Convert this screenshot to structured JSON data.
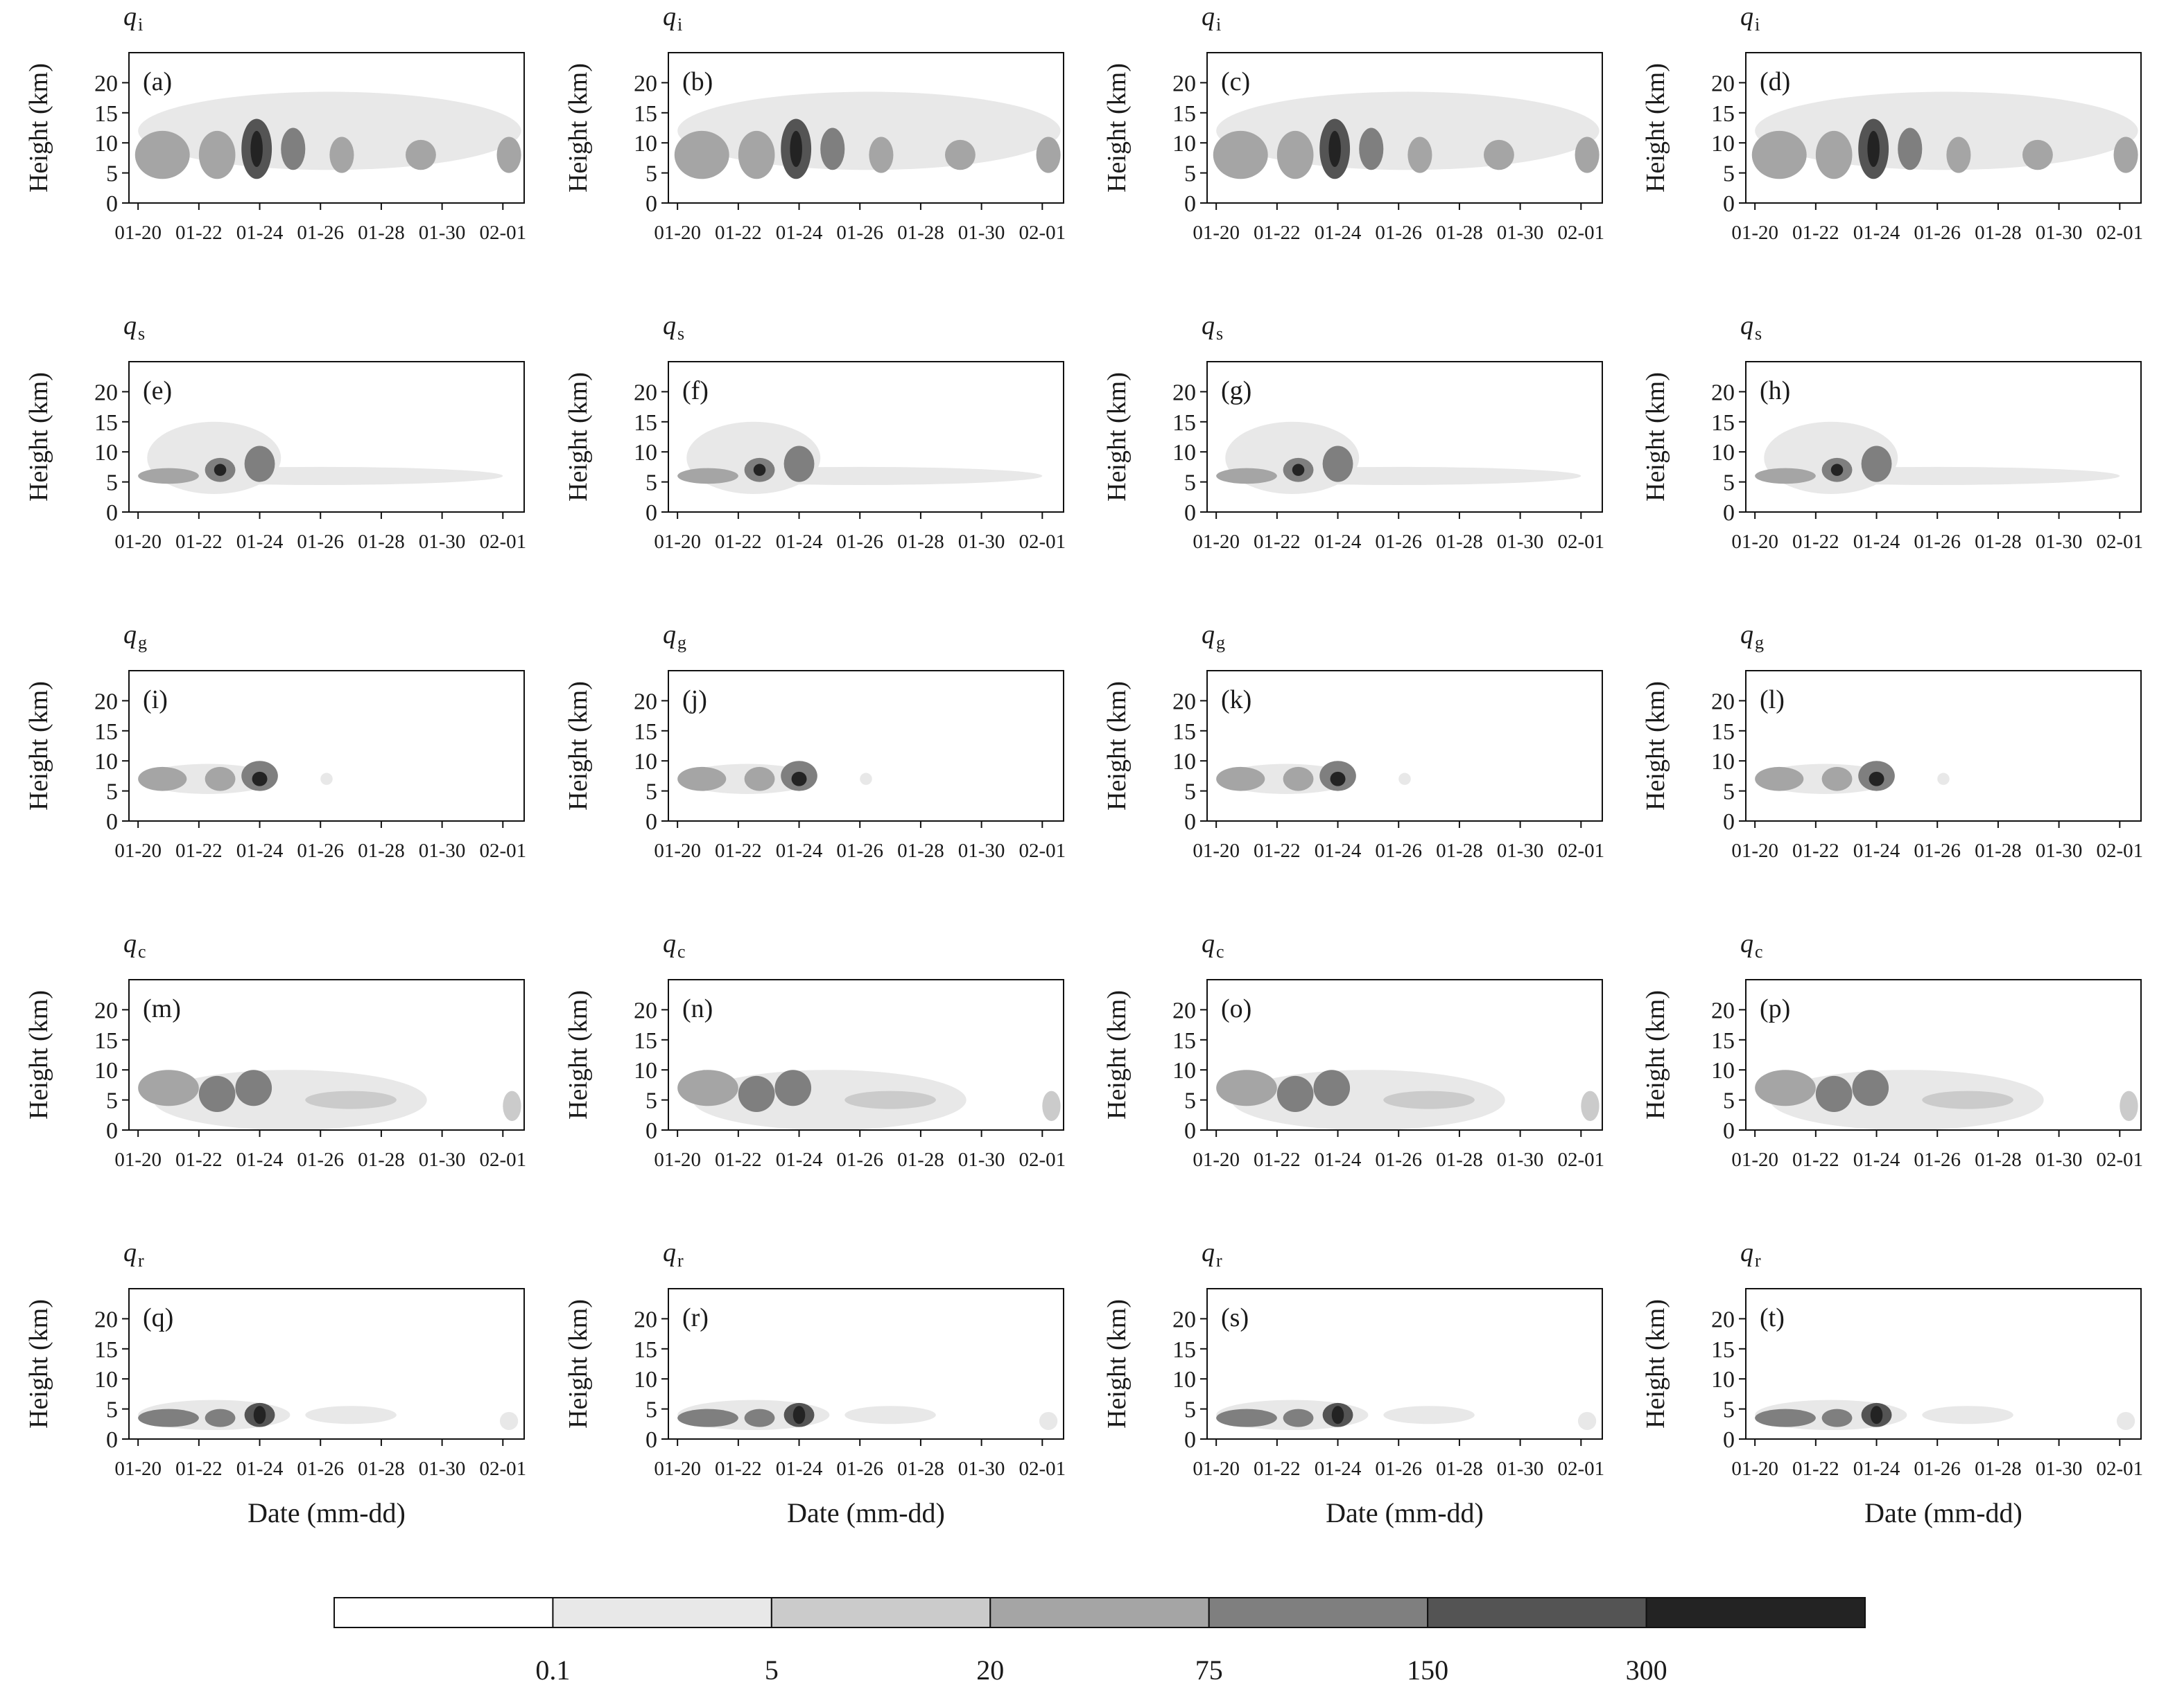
{
  "figure": {
    "xlabel": "Date (mm-dd)",
    "ylabel": "Height (km)",
    "x_tick_labels": [
      "01-20",
      "01-22",
      "01-24",
      "01-26",
      "01-28",
      "01-30",
      "02-01"
    ],
    "y_tick_labels": [
      "0",
      "5",
      "10",
      "15",
      "20"
    ]
  },
  "rows": [
    {
      "var": "q",
      "sub": "i",
      "panels": [
        "(a)",
        "(b)",
        "(c)",
        "(d)"
      ]
    },
    {
      "var": "q",
      "sub": "s",
      "panels": [
        "(e)",
        "(f)",
        "(g)",
        "(h)"
      ]
    },
    {
      "var": "q",
      "sub": "g",
      "panels": [
        "(i)",
        "(j)",
        "(k)",
        "(l)"
      ]
    },
    {
      "var": "q",
      "sub": "c",
      "panels": [
        "(m)",
        "(n)",
        "(o)",
        "(p)"
      ]
    },
    {
      "var": "q",
      "sub": "r",
      "panels": [
        "(q)",
        "(r)",
        "(s)",
        "(t)"
      ]
    }
  ],
  "colorbar": {
    "levels": [
      "0.1",
      "5",
      "20",
      "75",
      "150",
      "300"
    ],
    "colors": [
      "#ffffff",
      "#e8e8e8",
      "#cbcbcb",
      "#a5a5a5",
      "#7f7f7f",
      "#545454",
      "#232323"
    ]
  },
  "chart_data": {
    "type": "heatmap",
    "title": "",
    "xlabel": "Date (mm-dd)",
    "ylabel": "Height (km)",
    "x_range_days": [
      -0.3,
      12.7
    ],
    "x_ticks": [
      {
        "day": 0,
        "label": "01-20"
      },
      {
        "day": 2,
        "label": "01-22"
      },
      {
        "day": 4,
        "label": "01-24"
      },
      {
        "day": 6,
        "label": "01-26"
      },
      {
        "day": 8,
        "label": "01-28"
      },
      {
        "day": 10,
        "label": "01-30"
      },
      {
        "day": 12,
        "label": "02-01"
      }
    ],
    "ylim": [
      0,
      25
    ],
    "y_ticks": [
      0,
      5,
      10,
      15,
      20
    ],
    "levels": [
      0.1,
      5,
      20,
      75,
      150,
      300
    ],
    "series": [
      {
        "variable": "qi",
        "panels": [
          "(a)",
          "(b)",
          "(c)",
          "(d)"
        ],
        "blobs": [
          {
            "day": 6.3,
            "z": 12,
            "hw": 6.3,
            "hh": 6.5,
            "level": 1
          },
          {
            "day": 0.8,
            "z": 8,
            "hw": 0.9,
            "hh": 4,
            "level": 3
          },
          {
            "day": 2.6,
            "z": 8,
            "hw": 0.6,
            "hh": 4,
            "level": 3
          },
          {
            "day": 3.9,
            "z": 9,
            "hw": 0.5,
            "hh": 5,
            "level": 5
          },
          {
            "day": 3.9,
            "z": 9,
            "hw": 0.2,
            "hh": 3,
            "level": 6
          },
          {
            "day": 5.1,
            "z": 9,
            "hw": 0.4,
            "hh": 3.5,
            "level": 4
          },
          {
            "day": 6.7,
            "z": 8,
            "hw": 0.4,
            "hh": 3,
            "level": 3
          },
          {
            "day": 9.3,
            "z": 8,
            "hw": 0.5,
            "hh": 2.5,
            "level": 3
          },
          {
            "day": 12.2,
            "z": 8,
            "hw": 0.4,
            "hh": 3,
            "level": 3
          }
        ]
      },
      {
        "variable": "qs",
        "panels": [
          "(e)",
          "(f)",
          "(g)",
          "(h)"
        ],
        "blobs": [
          {
            "day": 6,
            "z": 6,
            "hw": 6,
            "hh": 1.5,
            "level": 1
          },
          {
            "day": 2.5,
            "z": 9,
            "hw": 2.2,
            "hh": 6,
            "level": 1
          },
          {
            "day": 1,
            "z": 6,
            "hw": 1,
            "hh": 1.3,
            "level": 3
          },
          {
            "day": 2.7,
            "z": 7,
            "hw": 0.5,
            "hh": 2,
            "level": 4
          },
          {
            "day": 2.7,
            "z": 7,
            "hw": 0.2,
            "hh": 1,
            "level": 6
          },
          {
            "day": 4,
            "z": 8,
            "hw": 0.5,
            "hh": 3,
            "level": 4
          }
        ]
      },
      {
        "variable": "qg",
        "panels": [
          "(i)",
          "(j)",
          "(k)",
          "(l)"
        ],
        "blobs": [
          {
            "day": 2.3,
            "z": 7,
            "hw": 2.2,
            "hh": 2.5,
            "level": 1
          },
          {
            "day": 0.8,
            "z": 7,
            "hw": 0.8,
            "hh": 2,
            "level": 3
          },
          {
            "day": 2.7,
            "z": 7,
            "hw": 0.5,
            "hh": 2,
            "level": 3
          },
          {
            "day": 4,
            "z": 7.5,
            "hw": 0.6,
            "hh": 2.5,
            "level": 4
          },
          {
            "day": 4,
            "z": 7,
            "hw": 0.25,
            "hh": 1.2,
            "level": 6
          },
          {
            "day": 6.2,
            "z": 7,
            "hw": 0.2,
            "hh": 1,
            "level": 1
          }
        ]
      },
      {
        "variable": "qc",
        "panels": [
          "(m)",
          "(n)",
          "(o)",
          "(p)"
        ],
        "blobs": [
          {
            "day": 5,
            "z": 5,
            "hw": 4.5,
            "hh": 5,
            "level": 1
          },
          {
            "day": 1,
            "z": 7,
            "hw": 1,
            "hh": 3,
            "level": 3
          },
          {
            "day": 2.6,
            "z": 6,
            "hw": 0.6,
            "hh": 3,
            "level": 4
          },
          {
            "day": 3.8,
            "z": 7,
            "hw": 0.6,
            "hh": 3,
            "level": 4
          },
          {
            "day": 7,
            "z": 5,
            "hw": 1.5,
            "hh": 1.5,
            "level": 2
          },
          {
            "day": 12.3,
            "z": 4,
            "hw": 0.3,
            "hh": 2.5,
            "level": 2
          }
        ]
      },
      {
        "variable": "qr",
        "panels": [
          "(q)",
          "(r)",
          "(s)",
          "(t)"
        ],
        "blobs": [
          {
            "day": 2.5,
            "z": 4,
            "hw": 2.5,
            "hh": 2.5,
            "level": 1
          },
          {
            "day": 1,
            "z": 3.5,
            "hw": 1,
            "hh": 1.5,
            "level": 4
          },
          {
            "day": 2.7,
            "z": 3.5,
            "hw": 0.5,
            "hh": 1.5,
            "level": 4
          },
          {
            "day": 4,
            "z": 4,
            "hw": 0.5,
            "hh": 2,
            "level": 5
          },
          {
            "day": 4,
            "z": 4,
            "hw": 0.2,
            "hh": 1.5,
            "level": 6
          },
          {
            "day": 7,
            "z": 4,
            "hw": 1.5,
            "hh": 1.5,
            "level": 1
          },
          {
            "day": 12.2,
            "z": 3,
            "hw": 0.3,
            "hh": 1.5,
            "level": 1
          }
        ]
      }
    ]
  }
}
